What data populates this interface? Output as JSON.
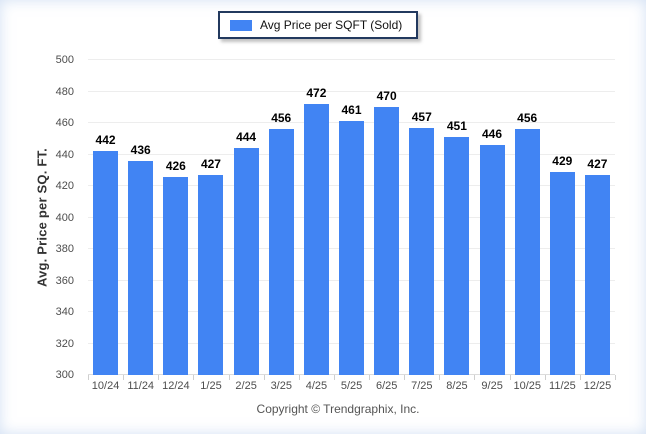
{
  "legend": {
    "label": "Avg Price per SQFT (Sold)",
    "swatch_color": "#4184F3"
  },
  "chart_data": {
    "type": "bar",
    "title": "",
    "categories": [
      "10/24",
      "11/24",
      "12/24",
      "1/25",
      "2/25",
      "3/25",
      "4/25",
      "5/25",
      "6/25",
      "7/25",
      "8/25",
      "9/25",
      "10/25",
      "11/25",
      "12/25"
    ],
    "series": [
      {
        "name": "Avg Price per SQFT (Sold)",
        "values": [
          442,
          436,
          426,
          427,
          444,
          456,
          472,
          461,
          470,
          457,
          451,
          446,
          456,
          429,
          427
        ],
        "color": "#4184F3"
      }
    ],
    "xlabel": "",
    "ylabel": "Avg. Price per SQ. FT.",
    "ylim": [
      300,
      500
    ],
    "ytick_step": 20,
    "grid": true,
    "value_labels": true,
    "legend_position": "top-center"
  },
  "colors": {
    "bar": "#4184F3",
    "gridline": "#ededed",
    "axis_text": "#4d4d4d",
    "legend_border": "#22395e"
  },
  "footer": {
    "copyright": "Copyright © Trendgraphix, Inc."
  }
}
